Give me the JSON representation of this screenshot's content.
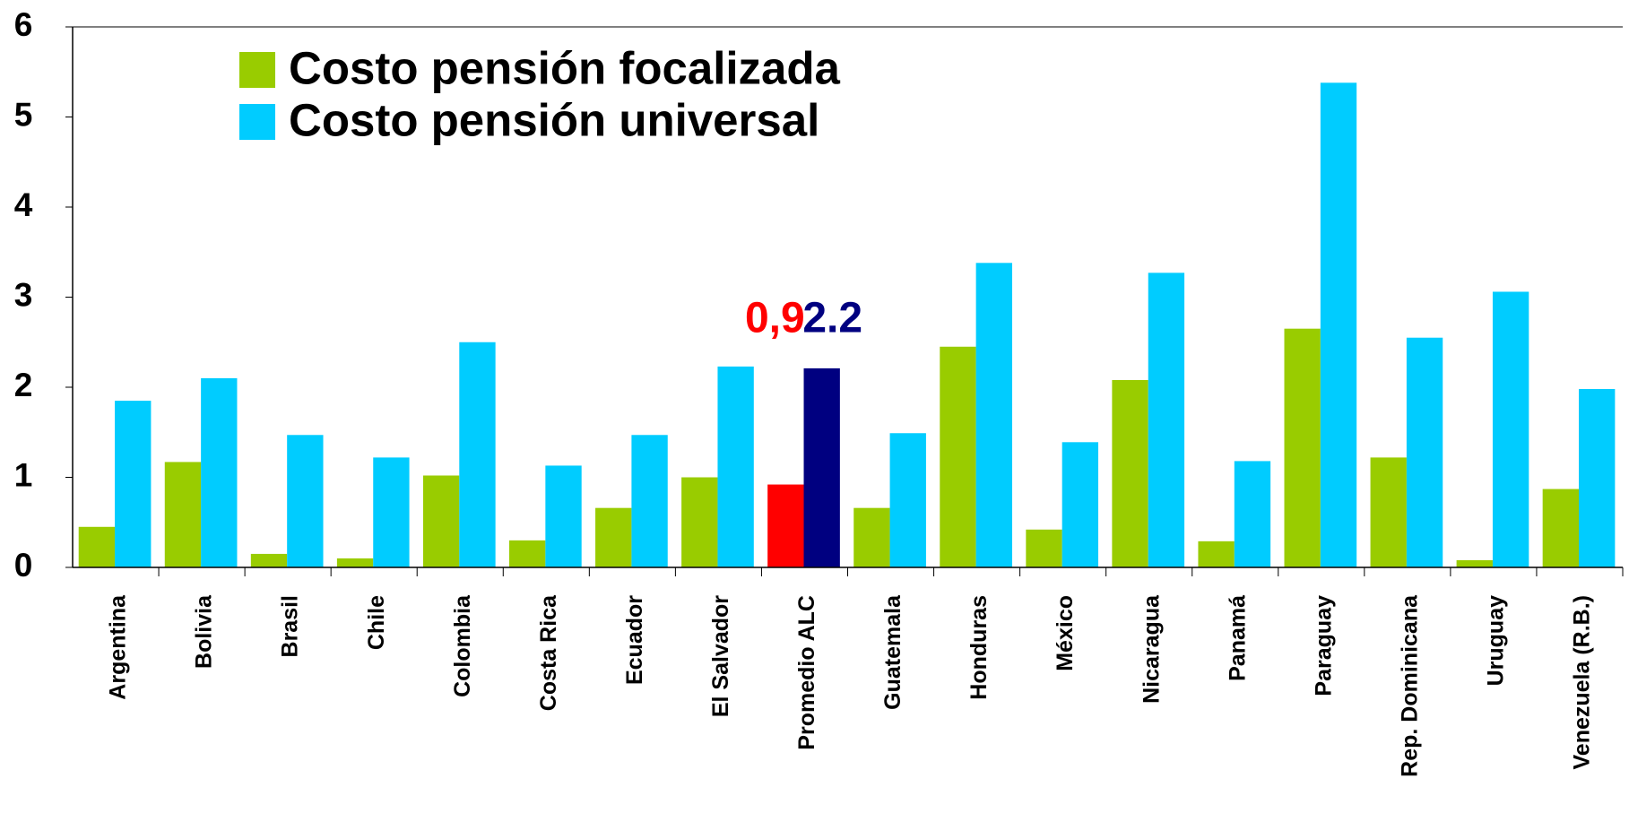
{
  "chart_data": {
    "type": "bar",
    "categories": [
      "Argentina",
      "Bolivia",
      "Brasil",
      "Chile",
      "Colombia",
      "Costa Rica",
      "Ecuador",
      "El Salvador",
      "Promedio ALC",
      "Guatemala",
      "Honduras",
      "México",
      "Nicaragua",
      "Panamá",
      "Paraguay",
      "Rep. Dominicana",
      "Uruguay",
      "Venezuela (R.B.)"
    ],
    "series": [
      {
        "name": "Costo pensión focalizada",
        "color": "#99cc00",
        "values": [
          0.45,
          1.17,
          0.15,
          0.1,
          1.02,
          0.3,
          0.66,
          1.0,
          0.92,
          0.66,
          2.45,
          0.42,
          2.08,
          0.29,
          2.65,
          1.22,
          0.08,
          0.87
        ]
      },
      {
        "name": "Costo pensión universal",
        "color": "#00ccff",
        "values": [
          1.85,
          2.1,
          1.47,
          1.22,
          2.5,
          1.13,
          1.47,
          2.23,
          2.21,
          1.49,
          3.38,
          1.39,
          3.27,
          1.18,
          5.38,
          2.55,
          3.06,
          1.98
        ]
      }
    ],
    "annotations": [
      {
        "text": "0,9",
        "color": "#ff0000",
        "category": "Promedio ALC",
        "series": 0
      },
      {
        "text": "2.2",
        "color": "#000080",
        "category": "Promedio ALC",
        "series": 1
      }
    ],
    "ylim": [
      0,
      6
    ],
    "yticks": [
      0,
      1,
      2,
      3,
      4,
      5,
      6
    ],
    "legend": "top-left"
  }
}
